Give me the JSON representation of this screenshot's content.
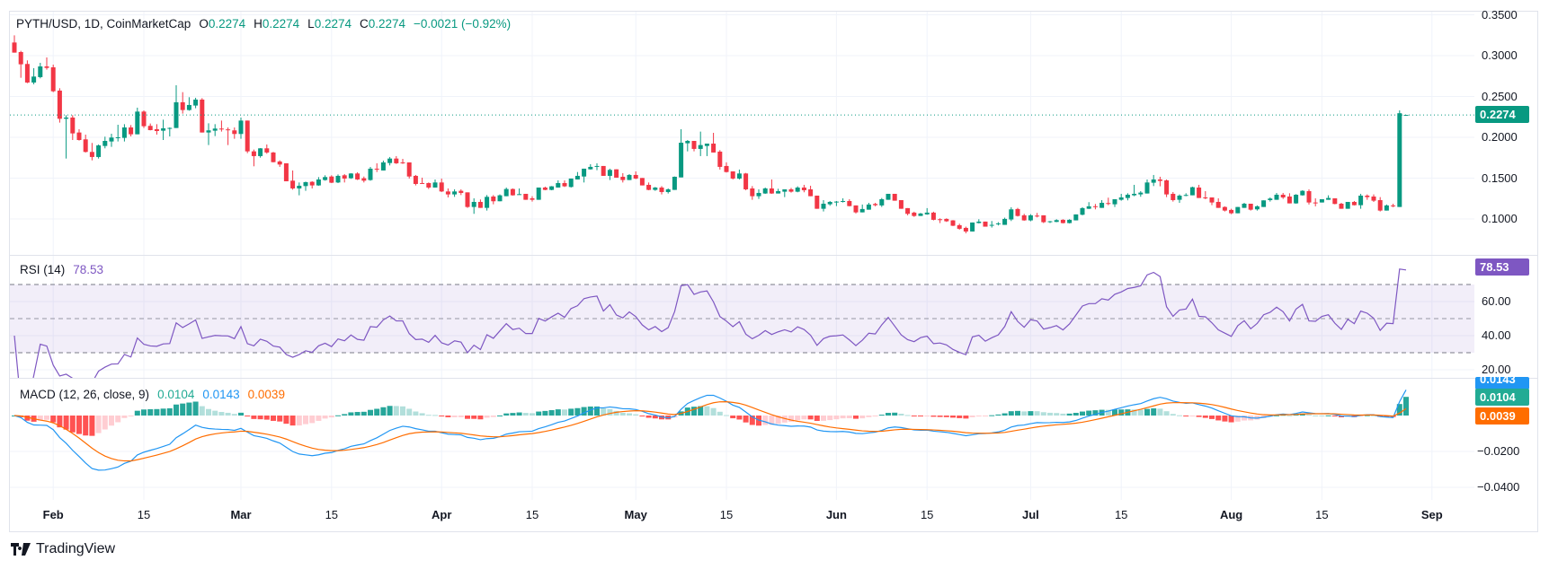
{
  "header": {
    "symbol": "PYTH/USD, 1D, CoinMarketCap",
    "o_label": "O",
    "o": "0.2274",
    "h_label": "H",
    "h": "0.2274",
    "l_label": "L",
    "l": "0.2274",
    "c_label": "C",
    "c": "0.2274",
    "change": "−0.0021 (−0.92%)"
  },
  "rsi_legend": {
    "label": "RSI (14)",
    "value": "78.53"
  },
  "macd_legend": {
    "label": "MACD (12, 26, close, 9)",
    "hist": "0.0104",
    "macd": "0.0143",
    "signal": "0.0039"
  },
  "price_tag": "0.2274",
  "rsi_tag": "78.53",
  "macd_tags": {
    "macd": "0.0143",
    "hist": "0.0104",
    "signal": "0.0039"
  },
  "brand": "TradingView",
  "colors": {
    "up": "#089981",
    "down": "#F23645",
    "rsi": "#7E57C2",
    "macd": "#2196F3",
    "signal": "#FF6D00",
    "hist_up": "#26A69A",
    "hist_up_light": "#B2DFDB",
    "hist_down": "#FF5252",
    "hist_down_light": "#FFCDD2"
  },
  "chart_data": {
    "type": "candlestick",
    "title": "PYTH/USD, 1D, CoinMarketCap",
    "ylim": [
      0.07,
      0.36
    ],
    "price_ticks": [
      "0.3500",
      "0.3000",
      "0.2500",
      "0.2000",
      "0.1500",
      "0.1000"
    ],
    "rsi_ticks": [
      "60.00",
      "40.00",
      "20.00"
    ],
    "rsi_levels": [
      70,
      50,
      30
    ],
    "macd_ticks": [
      "−0.0200",
      "−0.0400"
    ],
    "x_labels": [
      {
        "label": "Feb",
        "index": 6,
        "month": true
      },
      {
        "label": "15",
        "index": 20
      },
      {
        "label": "Mar",
        "index": 35,
        "month": true
      },
      {
        "label": "15",
        "index": 49
      },
      {
        "label": "Apr",
        "index": 66,
        "month": true
      },
      {
        "label": "15",
        "index": 80
      },
      {
        "label": "May",
        "index": 96,
        "month": true
      },
      {
        "label": "15",
        "index": 110
      },
      {
        "label": "Jun",
        "index": 127,
        "month": true
      },
      {
        "label": "15",
        "index": 141
      },
      {
        "label": "Jul",
        "index": 157,
        "month": true
      },
      {
        "label": "15",
        "index": 171
      },
      {
        "label": "Aug",
        "index": 188,
        "month": true
      },
      {
        "label": "15",
        "index": 202
      },
      {
        "label": "Sep",
        "index": 219,
        "month": true
      }
    ],
    "ohlc_fields": [
      "open",
      "high",
      "low",
      "close"
    ],
    "candles": [
      [
        0.3161,
        0.3249,
        0.3037,
        0.3037
      ],
      [
        0.3044,
        0.3059,
        0.2729,
        0.2894
      ],
      [
        0.2898,
        0.2942,
        0.2663,
        0.2671
      ],
      [
        0.2671,
        0.2847,
        0.2649,
        0.2744
      ],
      [
        0.2737,
        0.2912,
        0.2722,
        0.2868
      ],
      [
        0.2868,
        0.2978,
        0.2828,
        0.285
      ],
      [
        0.2857,
        0.289,
        0.2553,
        0.2564
      ],
      [
        0.2572,
        0.2601,
        0.218,
        0.2227
      ],
      [
        0.2227,
        0.2271,
        0.174,
        0.2242
      ],
      [
        0.2242,
        0.2271,
        0.1967,
        0.2048
      ],
      [
        0.2059,
        0.2099,
        0.196,
        0.1967
      ],
      [
        0.1975,
        0.2033,
        0.1814,
        0.1821
      ],
      [
        0.1821,
        0.1931,
        0.1718,
        0.1759
      ],
      [
        0.1759,
        0.1912,
        0.174,
        0.1901
      ],
      [
        0.1894,
        0.2008,
        0.1865,
        0.1956
      ],
      [
        0.1949,
        0.2044,
        0.1883,
        0.1997
      ],
      [
        0.1993,
        0.2154,
        0.1949,
        0.2
      ],
      [
        0.1993,
        0.2161,
        0.1949,
        0.2121
      ],
      [
        0.2121,
        0.215,
        0.2011,
        0.2037
      ],
      [
        0.2037,
        0.2363,
        0.2037,
        0.2315
      ],
      [
        0.2315,
        0.233,
        0.2114,
        0.2136
      ],
      [
        0.214,
        0.2169,
        0.2085,
        0.2088
      ],
      [
        0.2099,
        0.2161,
        0.2033,
        0.2077
      ],
      [
        0.2081,
        0.2216,
        0.1967,
        0.211
      ],
      [
        0.2114,
        0.2121,
        0.2011,
        0.2115
      ],
      [
        0.2114,
        0.2638,
        0.2114,
        0.2429
      ],
      [
        0.2429,
        0.2553,
        0.229,
        0.2334
      ],
      [
        0.2334,
        0.2491,
        0.2326,
        0.2396
      ],
      [
        0.2389,
        0.2484,
        0.2356,
        0.2462
      ],
      [
        0.2462,
        0.248,
        0.2059,
        0.2059
      ],
      [
        0.2059,
        0.2172,
        0.1905,
        0.2085
      ],
      [
        0.2081,
        0.2161,
        0.2015,
        0.2107
      ],
      [
        0.2107,
        0.2205,
        0.207,
        0.2099
      ],
      [
        0.2097,
        0.2121,
        0.1905,
        0.2096
      ],
      [
        0.2085,
        0.2121,
        0.1982,
        0.2041
      ],
      [
        0.2041,
        0.2242,
        0.1982,
        0.2205
      ],
      [
        0.2205,
        0.2205,
        0.1806,
        0.1828
      ],
      [
        0.1828,
        0.185,
        0.1645,
        0.177
      ],
      [
        0.177,
        0.1868,
        0.1751,
        0.1865
      ],
      [
        0.1865,
        0.1912,
        0.1799,
        0.1814
      ],
      [
        0.1814,
        0.1821,
        0.1693,
        0.1696
      ],
      [
        0.1704,
        0.1718,
        0.1638,
        0.1667
      ],
      [
        0.1682,
        0.1682,
        0.1462,
        0.1462
      ],
      [
        0.1469,
        0.1594,
        0.1359,
        0.1374
      ],
      [
        0.1374,
        0.1447,
        0.129,
        0.1407
      ],
      [
        0.1403,
        0.1458,
        0.1345,
        0.1451
      ],
      [
        0.1455,
        0.1462,
        0.1374,
        0.1411
      ],
      [
        0.1411,
        0.1513,
        0.1407,
        0.1484
      ],
      [
        0.1477,
        0.1535,
        0.1469,
        0.1513
      ],
      [
        0.152,
        0.1535,
        0.144,
        0.1444
      ],
      [
        0.1447,
        0.1546,
        0.144,
        0.1528
      ],
      [
        0.1535,
        0.155,
        0.1447,
        0.1495
      ],
      [
        0.1499,
        0.1561,
        0.1491,
        0.1557
      ],
      [
        0.1557,
        0.1572,
        0.1477,
        0.1484
      ],
      [
        0.1499,
        0.152,
        0.1447,
        0.1469
      ],
      [
        0.1477,
        0.1638,
        0.1469,
        0.1616
      ],
      [
        0.1616,
        0.1682,
        0.1575,
        0.1608
      ],
      [
        0.1594,
        0.1715,
        0.1594,
        0.1693
      ],
      [
        0.1685,
        0.1759,
        0.1656,
        0.174
      ],
      [
        0.174,
        0.177,
        0.1674,
        0.1682
      ],
      [
        0.1693,
        0.1736,
        0.1674,
        0.1682
      ],
      [
        0.1693,
        0.1693,
        0.1495,
        0.152
      ],
      [
        0.1528,
        0.1539,
        0.1411,
        0.1429
      ],
      [
        0.144,
        0.1506,
        0.1433,
        0.1433
      ],
      [
        0.144,
        0.1447,
        0.1367,
        0.1385
      ],
      [
        0.1385,
        0.1484,
        0.1385,
        0.1447
      ],
      [
        0.1447,
        0.1495,
        0.133,
        0.1337
      ],
      [
        0.1337,
        0.1374,
        0.1264,
        0.1301
      ],
      [
        0.1301,
        0.1363,
        0.1271,
        0.1337
      ],
      [
        0.1345,
        0.1363,
        0.1293,
        0.1319
      ],
      [
        0.1326,
        0.1326,
        0.1136,
        0.1147
      ],
      [
        0.1147,
        0.1253,
        0.1063,
        0.1209
      ],
      [
        0.1209,
        0.1239,
        0.1136,
        0.1136
      ],
      [
        0.1136,
        0.1293,
        0.1103,
        0.1271
      ],
      [
        0.1275,
        0.1293,
        0.118,
        0.1217
      ],
      [
        0.1217,
        0.1301,
        0.1217,
        0.129
      ],
      [
        0.1279,
        0.1385,
        0.1279,
        0.1367
      ],
      [
        0.1367,
        0.1374,
        0.1286,
        0.129
      ],
      [
        0.1302,
        0.1374,
        0.1301,
        0.1304
      ],
      [
        0.1308,
        0.1308,
        0.1235,
        0.1235
      ],
      [
        0.1253,
        0.1279,
        0.1213,
        0.1235
      ],
      [
        0.1235,
        0.1385,
        0.1235,
        0.1385
      ],
      [
        0.1385,
        0.1396,
        0.1352,
        0.1356
      ],
      [
        0.1356,
        0.1403,
        0.1352,
        0.14
      ],
      [
        0.1385,
        0.1473,
        0.1385,
        0.144
      ],
      [
        0.144,
        0.1473,
        0.1392,
        0.14
      ],
      [
        0.1392,
        0.1495,
        0.1385,
        0.1495
      ],
      [
        0.1484,
        0.1575,
        0.1484,
        0.1528
      ],
      [
        0.152,
        0.1616,
        0.1447,
        0.1616
      ],
      [
        0.1608,
        0.1671,
        0.1605,
        0.1638
      ],
      [
        0.1641,
        0.1682,
        0.1597,
        0.1649
      ],
      [
        0.1649,
        0.1649,
        0.1528,
        0.1528
      ],
      [
        0.1528,
        0.1616,
        0.1477,
        0.1601
      ],
      [
        0.1608,
        0.1608,
        0.1506,
        0.1506
      ],
      [
        0.1517,
        0.1561,
        0.1447,
        0.1477
      ],
      [
        0.1477,
        0.155,
        0.1477,
        0.1539
      ],
      [
        0.1539,
        0.1583,
        0.1488,
        0.1495
      ],
      [
        0.1502,
        0.1502,
        0.1411,
        0.1411
      ],
      [
        0.1418,
        0.1447,
        0.1352,
        0.1356
      ],
      [
        0.1356,
        0.1392,
        0.1345,
        0.1385
      ],
      [
        0.1385,
        0.1403,
        0.1301,
        0.133
      ],
      [
        0.133,
        0.1374,
        0.1312,
        0.1363
      ],
      [
        0.1356,
        0.152,
        0.1356,
        0.1517
      ],
      [
        0.1509,
        0.2099,
        0.1509,
        0.1934
      ],
      [
        0.1927,
        0.1967,
        0.1828,
        0.1956
      ],
      [
        0.1956,
        0.1956,
        0.1828,
        0.1858
      ],
      [
        0.1858,
        0.207,
        0.177,
        0.1905
      ],
      [
        0.1894,
        0.1923,
        0.177,
        0.1923
      ],
      [
        0.1923,
        0.2055,
        0.1814,
        0.1814
      ],
      [
        0.1825,
        0.1843,
        0.1605,
        0.1638
      ],
      [
        0.1649,
        0.1693,
        0.1568,
        0.1575
      ],
      [
        0.1583,
        0.1583,
        0.1484,
        0.1495
      ],
      [
        0.1495,
        0.1605,
        0.1484,
        0.1557
      ],
      [
        0.1557,
        0.1564,
        0.1352,
        0.1363
      ],
      [
        0.1374,
        0.1403,
        0.1235,
        0.1279
      ],
      [
        0.1279,
        0.1363,
        0.1246,
        0.1319
      ],
      [
        0.1312,
        0.1385,
        0.1308,
        0.1374
      ],
      [
        0.1374,
        0.1484,
        0.1308,
        0.1312
      ],
      [
        0.1312,
        0.137,
        0.1312,
        0.1341
      ],
      [
        0.1334,
        0.1363,
        0.1268,
        0.1363
      ],
      [
        0.1363,
        0.1381,
        0.1323,
        0.1334
      ],
      [
        0.1334,
        0.14,
        0.1327,
        0.1385
      ],
      [
        0.1385,
        0.1418,
        0.1327,
        0.1352
      ],
      [
        0.1363,
        0.1407,
        0.1279,
        0.1279
      ],
      [
        0.1286,
        0.1286,
        0.1125,
        0.1125
      ],
      [
        0.1125,
        0.1231,
        0.1092,
        0.1187
      ],
      [
        0.118,
        0.122,
        0.1162,
        0.1209
      ],
      [
        0.1206,
        0.122,
        0.1158,
        0.1213
      ],
      [
        0.1209,
        0.1253,
        0.1202,
        0.122
      ],
      [
        0.122,
        0.1242,
        0.1155,
        0.1158
      ],
      [
        0.1166,
        0.1166,
        0.1067,
        0.1081
      ],
      [
        0.1081,
        0.1177,
        0.1081,
        0.1122
      ],
      [
        0.1114,
        0.1198,
        0.1114,
        0.1177
      ],
      [
        0.1184,
        0.1198,
        0.1155,
        0.1169
      ],
      [
        0.1166,
        0.1257,
        0.1147,
        0.1242
      ],
      [
        0.1235,
        0.1308,
        0.1235,
        0.1308
      ],
      [
        0.1308,
        0.1308,
        0.1224,
        0.1224
      ],
      [
        0.1231,
        0.1231,
        0.1125,
        0.1125
      ],
      [
        0.1133,
        0.1133,
        0.1045,
        0.1063
      ],
      [
        0.1078,
        0.1089,
        0.1026,
        0.1037
      ],
      [
        0.1037,
        0.1074,
        0.1037,
        0.1067
      ],
      [
        0.1056,
        0.1133,
        0.1052,
        0.1078
      ],
      [
        0.1078,
        0.1089,
        0.0983,
        0.099
      ],
      [
        0.0997,
        0.1008,
        0.095,
        0.0994
      ],
      [
        0.1001,
        0.1008,
        0.0964,
        0.0972
      ],
      [
        0.0983,
        0.0986,
        0.0913,
        0.0917
      ],
      [
        0.0924,
        0.0942,
        0.0869,
        0.088
      ],
      [
        0.0891,
        0.0906,
        0.0825,
        0.0847
      ],
      [
        0.0847,
        0.0957,
        0.0847,
        0.0957
      ],
      [
        0.095,
        0.0997,
        0.0946,
        0.0968
      ],
      [
        0.0968,
        0.0968,
        0.0906,
        0.0906
      ],
      [
        0.0924,
        0.0975,
        0.0895,
        0.0928
      ],
      [
        0.0935,
        0.0961,
        0.0921,
        0.0946
      ],
      [
        0.0928,
        0.1016,
        0.0928,
        0.1001
      ],
      [
        0.0994,
        0.1144,
        0.0975,
        0.1118
      ],
      [
        0.1122,
        0.1136,
        0.103,
        0.1037
      ],
      [
        0.1045,
        0.1063,
        0.0979,
        0.0983
      ],
      [
        0.0983,
        0.1059,
        0.0972,
        0.1045
      ],
      [
        0.1041,
        0.1074,
        0.1019,
        0.1034
      ],
      [
        0.1045,
        0.1045,
        0.095,
        0.0961
      ],
      [
        0.0961,
        0.0975,
        0.095,
        0.0972
      ],
      [
        0.0964,
        0.0997,
        0.0961,
        0.0986
      ],
      [
        0.099,
        0.0997,
        0.0946,
        0.095
      ],
      [
        0.095,
        0.0997,
        0.0946,
        0.099
      ],
      [
        0.0983,
        0.1056,
        0.0983,
        0.1056
      ],
      [
        0.1052,
        0.1144,
        0.1045,
        0.1133
      ],
      [
        0.1125,
        0.1206,
        0.1122,
        0.1155
      ],
      [
        0.1156,
        0.1184,
        0.1118,
        0.1155
      ],
      [
        0.1136,
        0.1231,
        0.1136,
        0.1198
      ],
      [
        0.1195,
        0.1261,
        0.1169,
        0.1191
      ],
      [
        0.118,
        0.1242,
        0.1147,
        0.1242
      ],
      [
        0.1235,
        0.1308,
        0.1224,
        0.1264
      ],
      [
        0.1257,
        0.1315,
        0.1228,
        0.1297
      ],
      [
        0.129,
        0.1418,
        0.1279,
        0.1308
      ],
      [
        0.1301,
        0.1341,
        0.1272,
        0.1323
      ],
      [
        0.1312,
        0.1484,
        0.1312,
        0.1447
      ],
      [
        0.1444,
        0.1539,
        0.1403,
        0.1484
      ],
      [
        0.1484,
        0.1517,
        0.14,
        0.1466
      ],
      [
        0.1473,
        0.1484,
        0.1268,
        0.1301
      ],
      [
        0.1308,
        0.133,
        0.1213,
        0.1231
      ],
      [
        0.1235,
        0.1301,
        0.1198,
        0.1286
      ],
      [
        0.129,
        0.1315,
        0.1279,
        0.1294
      ],
      [
        0.129,
        0.1396,
        0.129,
        0.1389
      ],
      [
        0.1385,
        0.1418,
        0.1257,
        0.1257
      ],
      [
        0.1264,
        0.1341,
        0.1242,
        0.1253
      ],
      [
        0.1264,
        0.1264,
        0.1169,
        0.1202
      ],
      [
        0.1209,
        0.1253,
        0.1136,
        0.1136
      ],
      [
        0.1147,
        0.1155,
        0.1092,
        0.1103
      ],
      [
        0.1111,
        0.1125,
        0.1059,
        0.107
      ],
      [
        0.107,
        0.1147,
        0.107,
        0.1147
      ],
      [
        0.1136,
        0.1198,
        0.1136,
        0.1187
      ],
      [
        0.1187,
        0.1187,
        0.1103,
        0.1114
      ],
      [
        0.1118,
        0.1166,
        0.1103,
        0.1155
      ],
      [
        0.1147,
        0.1228,
        0.1147,
        0.1228
      ],
      [
        0.1231,
        0.1264,
        0.1213,
        0.125
      ],
      [
        0.1235,
        0.1319,
        0.1235,
        0.1297
      ],
      [
        0.1297,
        0.1319,
        0.1246,
        0.1264
      ],
      [
        0.1275,
        0.1315,
        0.1191,
        0.1191
      ],
      [
        0.1191,
        0.1304,
        0.1187,
        0.1297
      ],
      [
        0.129,
        0.1352,
        0.1286,
        0.1345
      ],
      [
        0.1341,
        0.1363,
        0.1177,
        0.1202
      ],
      [
        0.1202,
        0.1253,
        0.1155,
        0.1198
      ],
      [
        0.1202,
        0.1242,
        0.1202,
        0.1242
      ],
      [
        0.1235,
        0.129,
        0.1235,
        0.1257
      ],
      [
        0.1253,
        0.1253,
        0.118,
        0.1184
      ],
      [
        0.1187,
        0.1198,
        0.1125,
        0.1125
      ],
      [
        0.1125,
        0.1209,
        0.1125,
        0.1209
      ],
      [
        0.1209,
        0.122,
        0.1166,
        0.1169
      ],
      [
        0.1169,
        0.1308,
        0.1125,
        0.1286
      ],
      [
        0.1286,
        0.1301,
        0.1235,
        0.1268
      ],
      [
        0.1275,
        0.1301,
        0.1209,
        0.1224
      ],
      [
        0.1231,
        0.1268,
        0.1092,
        0.1103
      ],
      [
        0.1103,
        0.1177,
        0.1103,
        0.1166
      ],
      [
        0.1166,
        0.1187,
        0.1144,
        0.1162
      ],
      [
        0.1147,
        0.233,
        0.1147,
        0.2295
      ],
      [
        0.2274,
        0.2274,
        0.2274,
        0.2274
      ]
    ],
    "last_price": 0.2274,
    "rsi_last": 78.53,
    "macd_last": {
      "macd": 0.0143,
      "signal": 0.0039,
      "hist": 0.0104
    }
  }
}
